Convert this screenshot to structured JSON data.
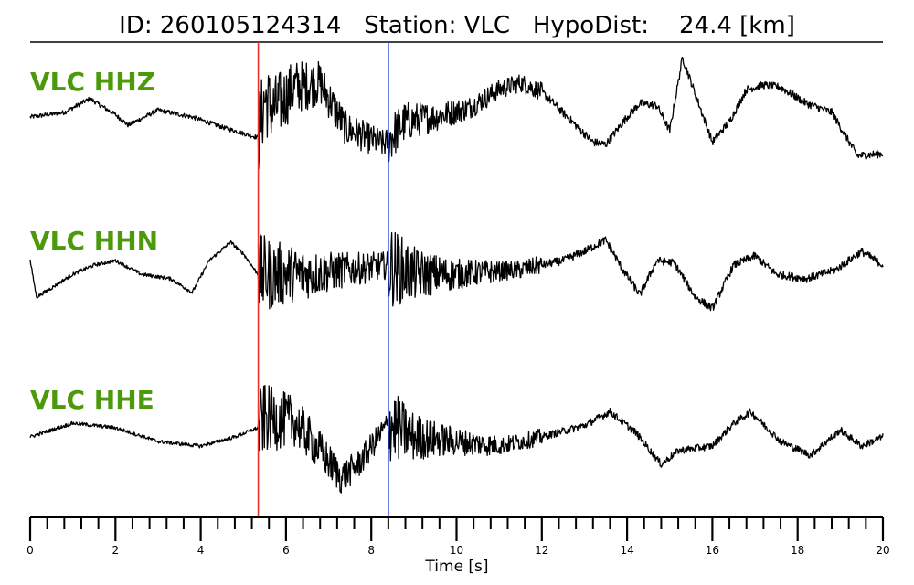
{
  "header": {
    "event_id_text": "ID: 260105124314",
    "station_text": "Station: VLC",
    "hypodist_text": "HypoDist:    24.4 [km]"
  },
  "colors": {
    "channel_label": "#4c9a0c",
    "p_pick": "#e8322f",
    "s_pick": "#1f3fd8",
    "trace": "#000000"
  },
  "chart_data": {
    "type": "line",
    "title": "ID: 260105124314   Station: VLC   HypoDist:    24.4 [km]",
    "xlabel": "Time [s]",
    "xlim": [
      0,
      20
    ],
    "x_major_ticks": [
      0,
      2,
      4,
      6,
      8,
      10,
      12,
      14,
      16,
      18,
      20
    ],
    "x_tick_labels": [
      "0",
      "2",
      "4",
      "6",
      "8",
      "10",
      "12",
      "14",
      "16",
      "18",
      "20"
    ],
    "x_minor_tick_step": 0.4,
    "grid": false,
    "vertical_markers": [
      {
        "time": 5.35,
        "color": "#e8322f"
      },
      {
        "time": 8.4,
        "color": "#1f3fd8"
      }
    ],
    "series": [
      {
        "name": "VLC HHZ",
        "pre_noise": 0.05,
        "coda_noise": 0.55,
        "x": [
          0,
          0.8,
          1.4,
          2.0,
          2.3,
          3.0,
          3.8,
          4.6,
          5.34,
          5.5,
          5.7,
          6.2,
          6.8,
          7.4,
          7.9,
          8.3,
          8.8,
          9.5,
          10.3,
          11.0,
          11.5,
          12.0,
          12.6,
          13.2,
          13.5,
          14.0,
          14.3,
          14.7,
          15.0,
          15.3,
          15.6,
          16.0,
          16.4,
          16.8,
          17.2,
          17.6,
          18.2,
          18.8,
          19.4,
          20.0
        ],
        "y": [
          0.0,
          0.1,
          0.4,
          0.05,
          -0.18,
          0.15,
          0.0,
          -0.25,
          -0.45,
          0.4,
          0.15,
          0.65,
          0.75,
          -0.25,
          -0.45,
          -0.6,
          -0.1,
          0.0,
          0.2,
          0.6,
          0.75,
          0.55,
          0.0,
          -0.55,
          -0.6,
          0.0,
          0.3,
          0.25,
          -0.3,
          1.3,
          0.5,
          -0.55,
          -0.1,
          0.6,
          0.7,
          0.65,
          0.3,
          0.1,
          -0.85,
          -0.8
        ]
      },
      {
        "name": "VLC HHN",
        "pre_noise": 0.04,
        "coda_noise": 0.55,
        "x": [
          0,
          0.15,
          0.5,
          1.0,
          1.5,
          2.0,
          2.6,
          3.3,
          3.8,
          4.2,
          4.7,
          5.0,
          5.34,
          6.5,
          7.5,
          8.4,
          9.0,
          10.0,
          11.5,
          12.5,
          13.0,
          13.5,
          13.9,
          14.3,
          14.7,
          15.1,
          15.6,
          16.0,
          16.5,
          17.0,
          17.5,
          18.2,
          18.9,
          19.5,
          20.0
        ],
        "y": [
          0.3,
          -0.5,
          -0.3,
          0.0,
          0.2,
          0.3,
          0.0,
          -0.1,
          -0.4,
          0.3,
          0.7,
          0.45,
          0.0,
          0.0,
          0.1,
          0.2,
          0.0,
          0.0,
          0.1,
          0.3,
          0.5,
          0.75,
          0.1,
          -0.45,
          0.3,
          0.25,
          -0.5,
          -0.75,
          0.2,
          0.4,
          0.0,
          -0.1,
          0.1,
          0.5,
          0.2
        ]
      },
      {
        "name": "VLC HHE",
        "pre_noise": 0.04,
        "coda_noise": 0.5,
        "x": [
          0,
          0.5,
          1.0,
          2.0,
          3.0,
          4.0,
          4.8,
          5.34,
          5.5,
          6.2,
          6.8,
          7.3,
          7.7,
          8.4,
          9.0,
          10.0,
          11.0,
          12.0,
          13.0,
          13.6,
          14.2,
          14.8,
          15.2,
          16.0,
          16.5,
          16.9,
          17.6,
          18.3,
          19.0,
          19.5,
          20.0
        ],
        "y": [
          0.0,
          0.15,
          0.3,
          0.2,
          -0.1,
          -0.2,
          0.0,
          0.2,
          0.4,
          0.35,
          -0.3,
          -0.9,
          -0.6,
          0.3,
          0.0,
          -0.1,
          -0.2,
          0.0,
          0.25,
          0.55,
          0.1,
          -0.6,
          -0.3,
          -0.2,
          0.3,
          0.55,
          -0.1,
          -0.4,
          0.15,
          -0.2,
          0.0
        ]
      }
    ]
  }
}
